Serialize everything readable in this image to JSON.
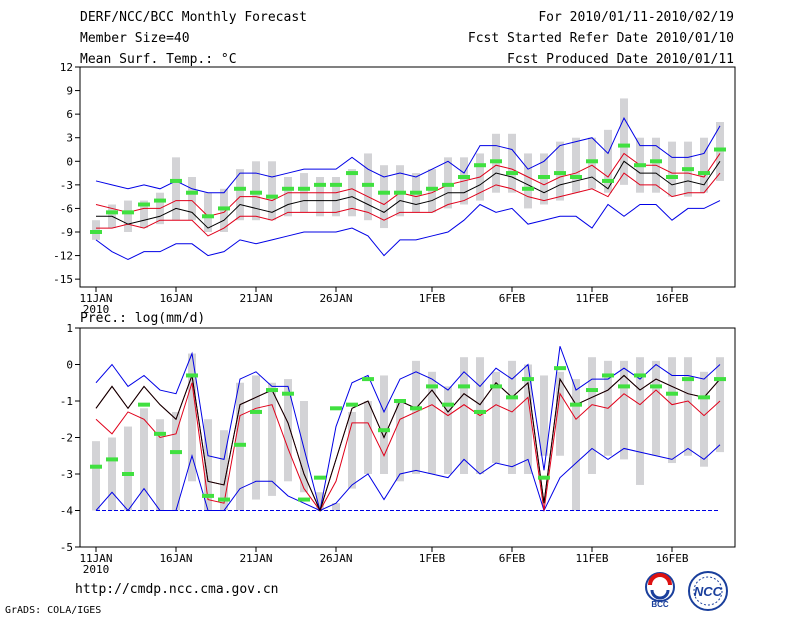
{
  "header": {
    "title": "DERF/NCC/BCC Monthly Forecast",
    "member_size": "Member Size=40",
    "variable": "Mean Surf. Temp.: °C",
    "period": "For 2010/01/11-2010/02/19",
    "started": "Fcst Started Refer Date 2010/01/10",
    "produced": "Fcst Produced Date 2010/01/11"
  },
  "footer": {
    "url": "http://cmdp.ncc.cma.gov.cn",
    "credit": "GrADS: COLA/IGES",
    "logo_bcc": "BCC",
    "logo_ncc": "NCC"
  },
  "colors": {
    "box": "#d3d3d6",
    "median": "#000000",
    "inner": "#e0001a",
    "outer": "#0000e6",
    "obs": "#40e040"
  },
  "chart_data": [
    {
      "type": "line",
      "name": "temperature",
      "ylabel": "Mean Surf. Temp.: °C",
      "ylim": [
        -16,
        12
      ],
      "yticks": [
        12,
        9,
        6,
        3,
        0,
        -3,
        -6,
        -9,
        -12,
        -15
      ],
      "xticks": [
        {
          "day": 1,
          "label": "11JAN",
          "sub": "2010"
        },
        {
          "day": 6,
          "label": "16JAN"
        },
        {
          "day": 11,
          "label": "21JAN"
        },
        {
          "day": 16,
          "label": "26JAN"
        },
        {
          "day": 22,
          "label": "1FEB"
        },
        {
          "day": 27,
          "label": "6FEB"
        },
        {
          "day": 32,
          "label": "11FEB"
        },
        {
          "day": 37,
          "label": "16FEB"
        }
      ],
      "days": [
        1,
        2,
        3,
        4,
        5,
        6,
        7,
        8,
        9,
        10,
        11,
        12,
        13,
        14,
        15,
        16,
        17,
        18,
        19,
        20,
        21,
        22,
        23,
        24,
        25,
        26,
        27,
        28,
        29,
        30,
        31,
        32,
        33,
        34,
        35,
        36,
        37,
        38,
        39,
        40
      ],
      "box_low": [
        -10,
        -8.5,
        -9,
        -8.5,
        -8,
        -7.5,
        -7.5,
        -9,
        -9,
        -7.5,
        -7.5,
        -7.5,
        -7,
        -6.5,
        -7,
        -7,
        -7,
        -7.5,
        -8.5,
        -7,
        -6.5,
        -6.5,
        -6,
        -5.5,
        -5,
        -4,
        -4,
        -6,
        -5.5,
        -5,
        -4,
        -3.5,
        -4,
        -3,
        -4,
        -4,
        -4.5,
        -4.5,
        -4,
        -2.5
      ],
      "box_high": [
        -7.5,
        -5.5,
        -5,
        -5,
        -4,
        0.5,
        -2,
        -4,
        -3.5,
        -1,
        0,
        0,
        -2,
        -1.5,
        -2,
        -2,
        -1,
        1,
        -0.5,
        -0.5,
        -1.5,
        -1,
        0.5,
        0.5,
        1,
        3.5,
        3.5,
        1,
        1,
        2.5,
        3,
        3,
        4,
        8,
        3,
        3,
        2.5,
        2.5,
        3,
        5
      ],
      "obs": [
        -9,
        -6.5,
        -6.5,
        -5.5,
        -5,
        -2.5,
        -4,
        -7,
        -6,
        -3.5,
        -4,
        -4.5,
        -3.5,
        -3.5,
        -3,
        -3,
        -1.5,
        -3,
        -4,
        -4,
        -4,
        -3.5,
        -3,
        -2,
        -0.5,
        0,
        -1.5,
        -3.5,
        -2,
        -1.5,
        -2,
        0,
        -2.5,
        2,
        -0.5,
        0,
        -2,
        -1,
        -1.5,
        1.5
      ],
      "median": [
        -7,
        -7,
        -8,
        -7.5,
        -7,
        -6,
        -6.5,
        -8.5,
        -7.5,
        -5.5,
        -6,
        -6.5,
        -5.5,
        -5,
        -5,
        -5,
        -4.5,
        -5.5,
        -6.5,
        -5,
        -5.5,
        -5,
        -4,
        -4,
        -3,
        -1.5,
        -2,
        -3,
        -4,
        -3,
        -2.5,
        -2,
        -3.5,
        0,
        -1.5,
        -1.5,
        -3,
        -2.5,
        -3,
        0
      ],
      "inner_low": [
        -8.5,
        -8.5,
        -8,
        -8.5,
        -7.5,
        -7.5,
        -7.5,
        -9.5,
        -8.5,
        -7,
        -7,
        -7.5,
        -6.5,
        -6.5,
        -6.5,
        -6.5,
        -6,
        -6.5,
        -7.5,
        -6.5,
        -6.5,
        -6.5,
        -5.5,
        -5,
        -4,
        -3,
        -3.5,
        -4.5,
        -5,
        -4.5,
        -4,
        -3.5,
        -4.5,
        -1.5,
        -3,
        -3,
        -4.5,
        -4,
        -4,
        -1.5
      ],
      "inner_high": [
        -5.5,
        -6,
        -6.5,
        -6,
        -6,
        -5,
        -5,
        -7,
        -6.5,
        -4.5,
        -4.5,
        -5,
        -4,
        -4,
        -4,
        -4,
        -3.5,
        -4.5,
        -5.5,
        -4,
        -4.5,
        -4,
        -3,
        -2.5,
        -2,
        -0.5,
        -1,
        -2,
        -3,
        -2,
        -1.5,
        -0.5,
        -2,
        1,
        -0.5,
        -0.5,
        -1.5,
        -1.5,
        -2,
        1
      ],
      "outer_low": [
        -10,
        -11.5,
        -12.5,
        -11.5,
        -11.5,
        -10.5,
        -10.5,
        -12,
        -11.5,
        -10,
        -10.5,
        -10,
        -9.5,
        -9,
        -9,
        -9,
        -8.5,
        -9.5,
        -12,
        -10,
        -10,
        -9.5,
        -9,
        -7.5,
        -5.5,
        -6.5,
        -6,
        -8,
        -7.5,
        -7,
        -7,
        -8.5,
        -5.5,
        -7,
        -5.5,
        -5.5,
        -7.5,
        -6,
        -6,
        -5
      ],
      "outer_high": [
        -2.5,
        -3,
        -3.5,
        -3,
        -3.5,
        -2.5,
        -3.5,
        -4,
        -4,
        -1.5,
        -1.5,
        -2,
        -1.5,
        -1,
        -1,
        -1,
        0.5,
        -1,
        -2,
        -1.5,
        -2,
        -1,
        0,
        -1.5,
        2,
        2,
        1.5,
        -1,
        0,
        2,
        2.5,
        3,
        1,
        5.5,
        2,
        2,
        0.5,
        0.5,
        1,
        4.5
      ]
    },
    {
      "type": "line",
      "name": "precipitation",
      "ylabel": "Prec.: log(mm/d)",
      "ylim": [
        -5,
        1
      ],
      "yticks": [
        1,
        0,
        -1,
        -2,
        -3,
        -4,
        -5
      ],
      "xticks": [
        {
          "day": 1,
          "label": "11JAN",
          "sub": "2010"
        },
        {
          "day": 6,
          "label": "16JAN"
        },
        {
          "day": 11,
          "label": "21JAN"
        },
        {
          "day": 16,
          "label": "26JAN"
        },
        {
          "day": 22,
          "label": "1FEB"
        },
        {
          "day": 27,
          "label": "6FEB"
        },
        {
          "day": 32,
          "label": "11FEB"
        },
        {
          "day": 37,
          "label": "16FEB"
        }
      ],
      "baseline": -4,
      "days": [
        1,
        2,
        3,
        4,
        5,
        6,
        7,
        8,
        9,
        10,
        11,
        12,
        13,
        14,
        15,
        16,
        17,
        18,
        19,
        20,
        21,
        22,
        23,
        24,
        25,
        26,
        27,
        28,
        29,
        30,
        31,
        32,
        33,
        34,
        35,
        36,
        37,
        38,
        39,
        40
      ],
      "box_low": [
        -4,
        -4,
        -4,
        -4,
        -4,
        -4,
        -3.2,
        -4,
        -4,
        -4,
        -3.7,
        -3.6,
        -3.2,
        -3.5,
        -4,
        -4,
        -3.4,
        -3,
        -3,
        -3.2,
        -3,
        -3,
        -3,
        -3,
        -3,
        -2.7,
        -3,
        -3,
        -2.5,
        -2.5,
        -4,
        -3,
        -2.5,
        -2.6,
        -3.3,
        -2.5,
        -2.7,
        -2.5,
        -2.8,
        -2.4
      ],
      "box_high": [
        -2.1,
        -2,
        -1.7,
        -1.2,
        -1.5,
        -1.3,
        0.3,
        -1.5,
        -1.8,
        -0.5,
        -0.3,
        -0.5,
        -0.4,
        -1,
        -3.5,
        -3.8,
        -1.3,
        -1,
        -0.3,
        -1,
        0.1,
        -0.2,
        -0.6,
        0.2,
        0.2,
        -0.2,
        0.1,
        0,
        -0.3,
        -0.2,
        -0.4,
        0.2,
        0.1,
        0.1,
        0.2,
        0.1,
        0.2,
        0.2,
        -0.2,
        0.2
      ],
      "obs": [
        -2.8,
        -2.6,
        -3,
        -1.1,
        -1.9,
        -2.4,
        -0.3,
        -3.6,
        -3.7,
        -2.2,
        -1.3,
        -0.7,
        -0.8,
        -3.7,
        -3.1,
        -1.2,
        -1.1,
        -0.4,
        -1.8,
        -1,
        -1.2,
        -0.6,
        -1.1,
        -0.6,
        -1.3,
        -0.6,
        -0.9,
        -0.4,
        -3.1,
        -0.1,
        -1.1,
        -0.7,
        -0.3,
        -0.6,
        -0.3,
        -0.6,
        -0.8,
        -0.4,
        -0.9,
        -0.4
      ],
      "median": [
        -1.2,
        -0.6,
        -1.2,
        -0.6,
        -1.1,
        -1.5,
        -0.3,
        -3.2,
        -3.3,
        -1.1,
        -0.9,
        -0.7,
        -1.6,
        -3,
        -4,
        -2.6,
        -1.2,
        -1,
        -2,
        -1,
        -1.2,
        -0.7,
        -1.3,
        -0.8,
        -1.1,
        -0.5,
        -0.9,
        -0.5,
        -3.8,
        -0.4,
        -1.1,
        -0.9,
        -0.7,
        -0.3,
        -0.7,
        -0.4,
        -0.6,
        -0.8,
        -0.9,
        -0.4
      ],
      "inner_low": [
        -1.5,
        -1.9,
        -1.3,
        -1.5,
        -2,
        -1.9,
        -0.5,
        -3.7,
        -3.8,
        -1.4,
        -1.2,
        -1.1,
        -2.3,
        -3.4,
        -4,
        -3.2,
        -1.6,
        -1.6,
        -2.5,
        -1.5,
        -1.3,
        -1.1,
        -1.4,
        -1.1,
        -1.4,
        -1.1,
        -1.3,
        -0.9,
        -4,
        -0.8,
        -1.5,
        -1.1,
        -1.2,
        -0.8,
        -1.1,
        -0.7,
        -1.1,
        -1,
        -1.4,
        -1
      ],
      "inner_high": [
        -1.2,
        -0.6,
        -1.2,
        -0.6,
        -1.1,
        -1.5,
        -0.3,
        -3.2,
        -3.3,
        -1.1,
        -0.9,
        -0.7,
        -1.6,
        -3,
        -4,
        -2.6,
        -1.2,
        -1,
        -2,
        -1,
        -1.2,
        -0.7,
        -1.3,
        -0.8,
        -1.1,
        -0.5,
        -0.9,
        -0.5,
        -3.8,
        -0.4,
        -1.1,
        -0.9,
        -0.7,
        -0.3,
        -0.7,
        -0.4,
        -0.6,
        -0.8,
        -0.9,
        -0.4
      ],
      "outer_low": [
        -4,
        -3.5,
        -4,
        -3.4,
        -4,
        -4,
        -2.5,
        -4,
        -4,
        -3.4,
        -3.2,
        -3.2,
        -3.6,
        -3.8,
        -4,
        -3.8,
        -3.3,
        -3,
        -3.7,
        -3,
        -2.9,
        -3,
        -3.1,
        -2.6,
        -3,
        -2.7,
        -2.8,
        -2.6,
        -4,
        -3.1,
        -2.7,
        -2.3,
        -2.6,
        -2.3,
        -2.4,
        -2.5,
        -2.6,
        -2.3,
        -2.6,
        -2.2
      ],
      "outer_high": [
        -0.5,
        0,
        -0.6,
        -0.3,
        -0.7,
        -0.8,
        0.3,
        -2.5,
        -2.6,
        -0.4,
        -0.2,
        -0.6,
        -0.6,
        -2.3,
        -4,
        -1.7,
        -0.5,
        -0.3,
        -1.3,
        -0.4,
        -0.2,
        -0.4,
        -0.7,
        -0.2,
        -0.6,
        -0.1,
        -0.4,
        0,
        -2.9,
        0.5,
        -0.7,
        -0.4,
        -0.4,
        -0.1,
        -0.4,
        0,
        -0.3,
        -0.3,
        -0.4,
        0
      ]
    }
  ]
}
